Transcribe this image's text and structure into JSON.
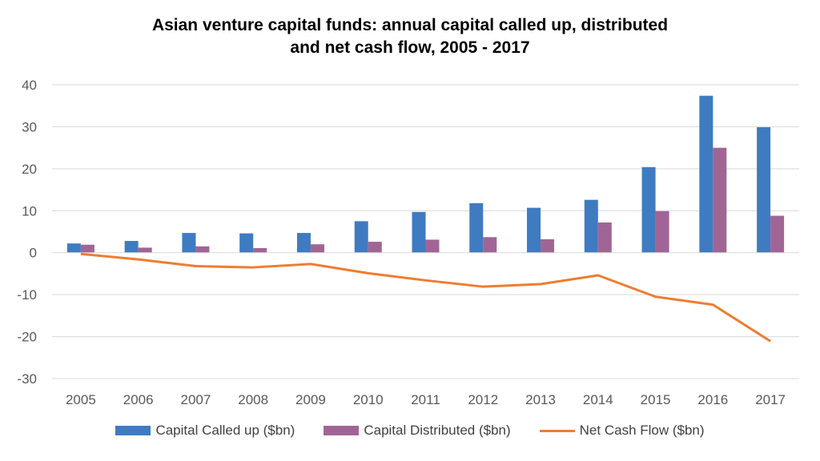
{
  "chart_data": {
    "type": "bar",
    "title_line1": "Asian venture capital funds: annual capital called up, distributed",
    "title_line2": "and net cash flow, 2005 - 2017",
    "categories": [
      "2005",
      "2006",
      "2007",
      "2008",
      "2009",
      "2010",
      "2011",
      "2012",
      "2013",
      "2014",
      "2015",
      "2016",
      "2017"
    ],
    "series": [
      {
        "name": "Capital Called up ($bn)",
        "kind": "bar",
        "color": "#3F7BC1",
        "values": [
          2.2,
          2.8,
          4.7,
          4.6,
          4.7,
          7.5,
          9.7,
          11.8,
          10.7,
          12.6,
          20.4,
          37.4,
          29.9
        ]
      },
      {
        "name": "Capital Distributed ($bn)",
        "kind": "bar",
        "color": "#A16595",
        "values": [
          1.9,
          1.2,
          1.5,
          1.1,
          2.0,
          2.6,
          3.1,
          3.7,
          3.2,
          7.2,
          9.9,
          25.0,
          8.8
        ]
      },
      {
        "name": "Net Cash Flow ($bn)",
        "kind": "line",
        "color": "#ED7D31",
        "values": [
          -0.3,
          -1.6,
          -3.2,
          -3.5,
          -2.7,
          -4.9,
          -6.6,
          -8.1,
          -7.5,
          -5.4,
          -10.5,
          -12.4,
          -21.1
        ]
      }
    ],
    "yticks": [
      "40",
      "30",
      "20",
      "10",
      "0",
      "-10",
      "-20",
      "-30"
    ],
    "ylim": [
      -30,
      40
    ],
    "grid": true,
    "legend_position": "bottom"
  }
}
